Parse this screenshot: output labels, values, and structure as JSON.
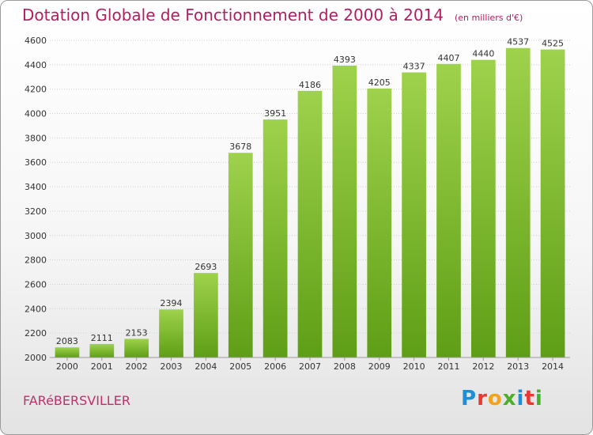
{
  "header": {
    "title": "Dotation Globale de Fonctionnement de 2000 à 2014",
    "subtitle": "(en milliers d'€)"
  },
  "footer": {
    "commune": "FARéBERSVILLER",
    "brand_letters": [
      "P",
      "r",
      "o",
      "x",
      "i",
      "t",
      "i"
    ],
    "brand_colors": [
      "#1e8fd6",
      "#e8382f",
      "#f3a21a",
      "#4caf2a",
      "#1e8fd6",
      "#e8382f",
      "#4caf2a"
    ]
  },
  "chart_data": {
    "type": "bar",
    "categories": [
      "2000",
      "2001",
      "2002",
      "2003",
      "2004",
      "2005",
      "2006",
      "2007",
      "2008",
      "2009",
      "2010",
      "2011",
      "2012",
      "2013",
      "2014"
    ],
    "values": [
      2083,
      2111,
      2153,
      2394,
      2693,
      3678,
      3951,
      4186,
      4393,
      4205,
      4337,
      4407,
      4440,
      4537,
      4525
    ],
    "ylim": [
      2000,
      4600
    ],
    "yticks": [
      2000,
      2200,
      2400,
      2600,
      2800,
      3000,
      3200,
      3400,
      3600,
      3800,
      4000,
      4200,
      4400,
      4600
    ],
    "grid": true,
    "bar_color_top": "#9fd24c",
    "bar_color_bottom": "#5e9e16",
    "xlabel": "",
    "ylabel": ""
  }
}
